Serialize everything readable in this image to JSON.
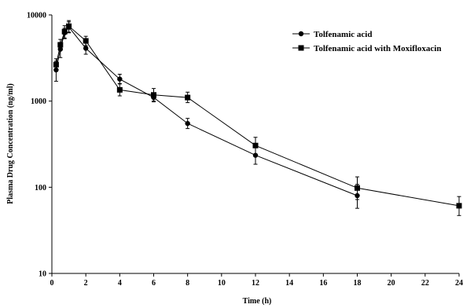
{
  "chart_data": {
    "type": "line",
    "xlabel": "Time (h)",
    "ylabel": "Plasma Drug Concentration (ng/ml)",
    "xlim": [
      0,
      24
    ],
    "ylim": [
      10,
      10000
    ],
    "yscale": "log",
    "grid": false,
    "legend_position": "top-right",
    "x_ticks": [
      "0",
      "2",
      "4",
      "6",
      "8",
      "10",
      "12",
      "14",
      "16",
      "18",
      "20",
      "22",
      "24"
    ],
    "y_ticks": [
      "10",
      "100",
      "1000",
      "10000"
    ],
    "series": [
      {
        "name": "Tolfenamic acid",
        "marker": "circle",
        "x": [
          0.25,
          0.5,
          0.75,
          1,
          2,
          4,
          6,
          8,
          12,
          18
        ],
        "y": [
          2300,
          4000,
          6200,
          7200,
          4100,
          1800,
          1100,
          550,
          235,
          80
        ],
        "err_low": [
          1700,
          3200,
          5300,
          6200,
          3500,
          1600,
          980,
          480,
          185,
          57
        ],
        "err_high": [
          2900,
          4800,
          7000,
          8300,
          4700,
          2050,
          1250,
          630,
          295,
          108
        ]
      },
      {
        "name": "Tolfenamic acid with Moxifloxacin",
        "marker": "square",
        "x": [
          0.25,
          0.5,
          0.75,
          1,
          2,
          4,
          6,
          8,
          12,
          18,
          24
        ],
        "y": [
          2650,
          4500,
          6400,
          7400,
          5000,
          1350,
          1180,
          1100,
          305,
          98,
          61
        ],
        "err_low": [
          2250,
          3900,
          5400,
          6300,
          4400,
          1150,
          1000,
          960,
          240,
          72,
          47
        ],
        "err_high": [
          3100,
          5200,
          7500,
          8600,
          5650,
          1580,
          1400,
          1270,
          380,
          132,
          78
        ]
      }
    ]
  }
}
